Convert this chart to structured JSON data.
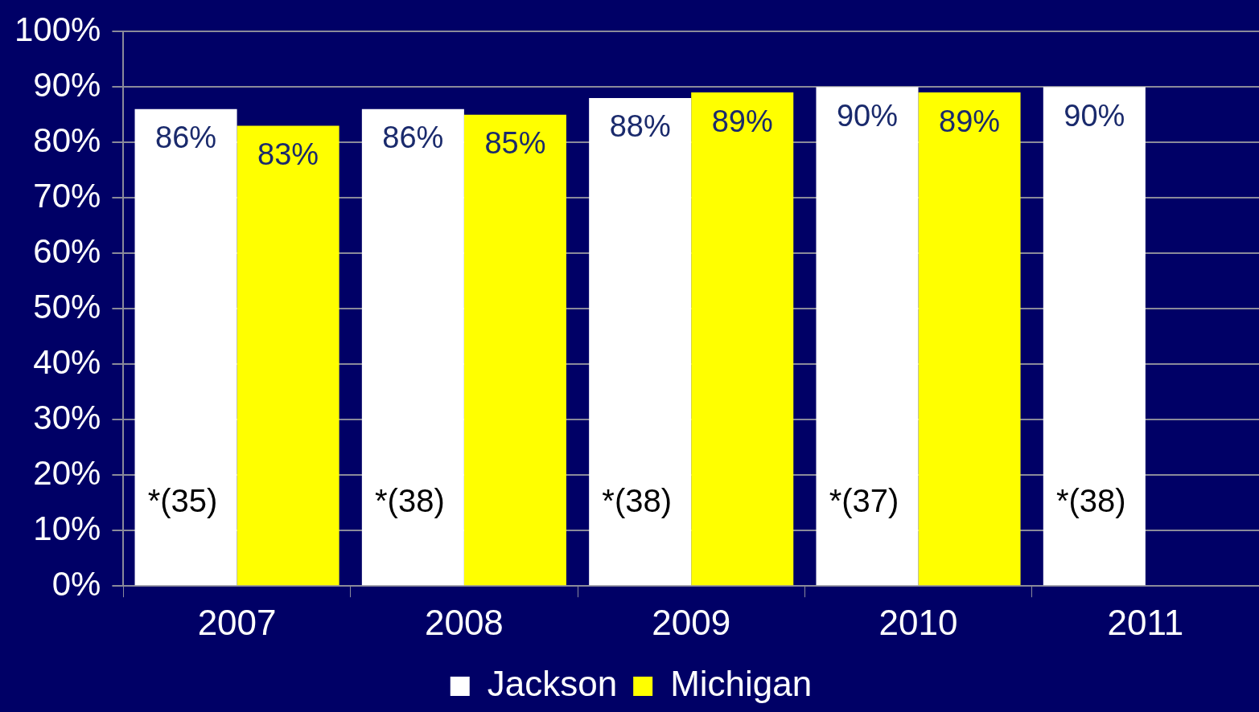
{
  "chart_data": {
    "type": "bar",
    "categories": [
      "2007",
      "2008",
      "2009",
      "2010",
      "2011"
    ],
    "series": [
      {
        "name": "Jackson",
        "color": "#ffffff",
        "values": [
          86,
          86,
          88,
          90,
          90
        ],
        "value_labels": [
          "86%",
          "86%",
          "88%",
          "90%",
          "90%"
        ]
      },
      {
        "name": "Michigan",
        "color": "#ffff00",
        "values": [
          83,
          85,
          89,
          89,
          null
        ],
        "value_labels": [
          "83%",
          "85%",
          "89%",
          "89%",
          null
        ]
      }
    ],
    "ylim": [
      0,
      100
    ],
    "yticks": [
      {
        "value": 0,
        "label": "0%"
      },
      {
        "value": 10,
        "label": "10%"
      },
      {
        "value": 20,
        "label": "20%"
      },
      {
        "value": 30,
        "label": "30%"
      },
      {
        "value": 40,
        "label": "40%"
      },
      {
        "value": 50,
        "label": "50%"
      },
      {
        "value": 60,
        "label": "60%"
      },
      {
        "value": 70,
        "label": "70%"
      },
      {
        "value": 80,
        "label": "80%"
      },
      {
        "value": 90,
        "label": "90%"
      },
      {
        "value": 100,
        "label": "100%"
      }
    ],
    "grid": "y",
    "legend": "bottom",
    "annotations": [
      {
        "text": "*(35)",
        "x": "2007",
        "y": 15
      },
      {
        "text": "*(38)",
        "x": "2008",
        "y": 15
      },
      {
        "text": "*(38)",
        "x": "2009",
        "y": 15
      },
      {
        "text": "*(37)",
        "x": "2010",
        "y": 15
      },
      {
        "text": "*(38)",
        "x": "2011",
        "y": 15
      }
    ]
  }
}
